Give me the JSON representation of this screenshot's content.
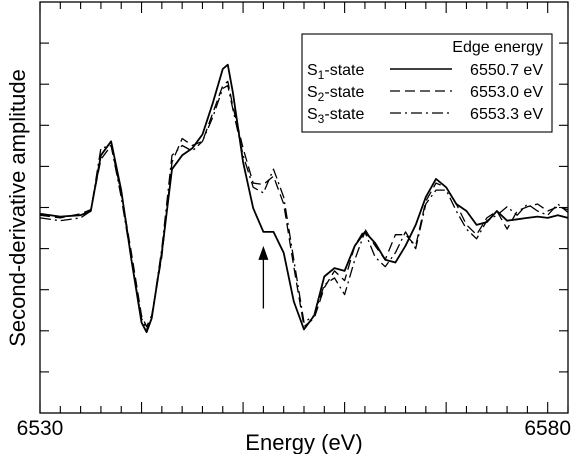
{
  "chart_data": {
    "type": "line",
    "title": "",
    "xlabel": "Energy (eV)",
    "ylabel": "Second-derivative amplitude",
    "xlim": [
      6530,
      6582
    ],
    "x_tick_labels": [
      {
        "value": 6530,
        "label": "6530"
      },
      {
        "value": 6580,
        "label": "6580"
      }
    ],
    "x_minor_step": 2,
    "y_ticks": 10,
    "grid": false,
    "legend": {
      "placement": "top-right",
      "header": "Edge energy",
      "entries": [
        {
          "state_main": "S",
          "state_sub": "1",
          "state_rest": "-state",
          "edge_energy": "6550.7 eV",
          "style": "solid"
        },
        {
          "state_main": "S",
          "state_sub": "2",
          "state_rest": "-state",
          "edge_energy": "6553.0 eV",
          "style": "dashed"
        },
        {
          "state_main": "S",
          "state_sub": "3",
          "state_rest": "-state",
          "edge_energy": "6553.3 eV",
          "style": "dashdot"
        }
      ]
    },
    "annotation": {
      "type": "arrow",
      "x": 6552,
      "y_from": -0.65,
      "y_to": -0.2
    },
    "series": [
      {
        "style": "solid",
        "x": [
          6530,
          6532,
          6534,
          6535,
          6536,
          6537,
          6538,
          6539,
          6540,
          6540.5,
          6541,
          6542,
          6543,
          6544,
          6545,
          6546,
          6547,
          6548,
          6548.5,
          6549,
          6550,
          6551,
          6552,
          6553,
          6554,
          6555,
          6556,
          6557,
          6558,
          6559,
          6560,
          6561,
          6562,
          6563,
          6564,
          6565,
          6566,
          6567,
          6568,
          6569,
          6570,
          6571,
          6572,
          6573,
          6574,
          6575,
          6576,
          6577,
          6578,
          6579,
          6580,
          6581,
          6582
        ],
        "y": [
          0.03,
          0.01,
          0.02,
          0.05,
          0.45,
          0.55,
          0.2,
          -0.3,
          -0.75,
          -0.82,
          -0.72,
          -0.25,
          0.35,
          0.45,
          0.5,
          0.6,
          0.82,
          1.07,
          1.1,
          0.9,
          0.4,
          0.07,
          -0.1,
          -0.1,
          -0.25,
          -0.6,
          -0.8,
          -0.7,
          -0.42,
          -0.36,
          -0.38,
          -0.2,
          -0.1,
          -0.18,
          -0.3,
          -0.32,
          -0.2,
          -0.05,
          0.15,
          0.28,
          0.22,
          0.1,
          0.05,
          -0.05,
          -0.03,
          0.05,
          -0.02,
          -0.01,
          0.0,
          0.01,
          0.0,
          0.02,
          0.0
        ]
      },
      {
        "style": "dashed",
        "x": [
          6530,
          6532,
          6534,
          6535,
          6536,
          6537,
          6538,
          6539,
          6540,
          6540.5,
          6541,
          6542,
          6543,
          6544,
          6545,
          6546,
          6547,
          6548,
          6548.5,
          6549,
          6550,
          6551,
          6552,
          6553,
          6554,
          6555,
          6556,
          6557,
          6558,
          6559,
          6560,
          6561,
          6562,
          6563,
          6564,
          6565,
          6566,
          6567,
          6568,
          6569,
          6570,
          6571,
          6572,
          6573,
          6574,
          6575,
          6576,
          6577,
          6578,
          6579,
          6580,
          6581,
          6582
        ],
        "y": [
          0.02,
          0.0,
          0.03,
          0.06,
          0.42,
          0.52,
          0.18,
          -0.25,
          -0.7,
          -0.78,
          -0.7,
          -0.28,
          0.4,
          0.57,
          0.52,
          0.55,
          0.75,
          0.95,
          0.98,
          0.8,
          0.5,
          0.25,
          0.24,
          0.3,
          0.1,
          -0.35,
          -0.78,
          -0.72,
          -0.5,
          -0.38,
          -0.45,
          -0.2,
          -0.08,
          -0.2,
          -0.3,
          -0.12,
          -0.12,
          -0.2,
          0.12,
          0.25,
          0.22,
          0.1,
          -0.05,
          -0.12,
          0.0,
          0.05,
          -0.08,
          0.05,
          0.08,
          0.1,
          0.05,
          0.08,
          0.06
        ]
      },
      {
        "style": "dashdot",
        "x": [
          6530,
          6532,
          6534,
          6535,
          6536,
          6537,
          6538,
          6539,
          6540,
          6540.5,
          6541,
          6542,
          6543,
          6544,
          6545,
          6546,
          6547,
          6548,
          6548.5,
          6549,
          6550,
          6551,
          6552,
          6553,
          6554,
          6555,
          6556,
          6557,
          6558,
          6559,
          6560,
          6561,
          6562,
          6563,
          6564,
          6565,
          6566,
          6567,
          6568,
          6569,
          6570,
          6571,
          6572,
          6573,
          6574,
          6575,
          6576,
          6577,
          6578,
          6579,
          6580,
          6581,
          6582
        ],
        "y": [
          0.0,
          -0.02,
          0.0,
          0.05,
          0.5,
          0.52,
          0.15,
          -0.3,
          -0.72,
          -0.8,
          -0.72,
          -0.22,
          0.45,
          0.52,
          0.48,
          0.55,
          0.72,
          0.93,
          0.95,
          0.78,
          0.45,
          0.22,
          0.18,
          0.35,
          0.15,
          -0.3,
          -0.75,
          -0.7,
          -0.48,
          -0.43,
          -0.55,
          -0.3,
          -0.1,
          -0.28,
          -0.35,
          -0.25,
          -0.1,
          -0.22,
          0.1,
          0.2,
          0.2,
          0.05,
          -0.08,
          -0.15,
          -0.02,
          0.02,
          0.08,
          0.02,
          0.1,
          0.05,
          0.02,
          0.1,
          0.04
        ]
      }
    ],
    "ylim": [
      -1.4,
      1.55
    ]
  }
}
